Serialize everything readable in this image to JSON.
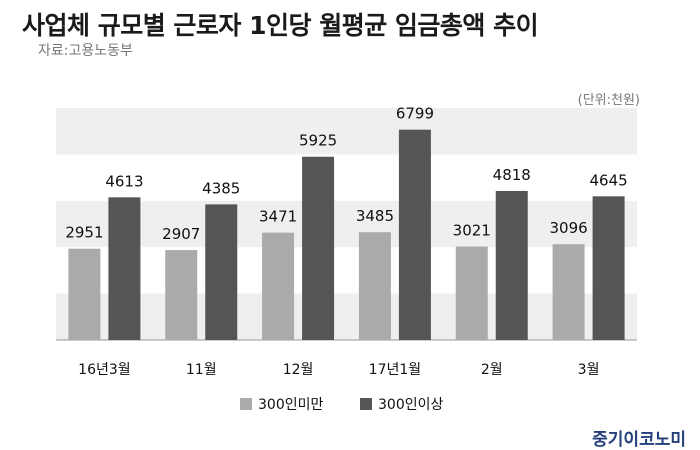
{
  "title": "사업체 규모별 근로자 1인당 월평균 임금총액 추이",
  "source": "자료:고용노동부",
  "unit": "(단위:천원)",
  "brand": "중기이코노미",
  "colors": {
    "series_small": "#aaaaaa",
    "series_large": "#555555",
    "band": "#efefef",
    "axis": "#999999"
  },
  "chart_data": {
    "type": "bar",
    "categories": [
      "16년3월",
      "11월",
      "12월",
      "17년1월",
      "2월",
      "3월"
    ],
    "series": [
      {
        "name": "300인미만",
        "values": [
          2951,
          2907,
          3471,
          3485,
          3021,
          3096
        ]
      },
      {
        "name": "300인이상",
        "values": [
          4613,
          4385,
          5925,
          6799,
          4818,
          4645
        ]
      }
    ],
    "xlabel": "",
    "ylabel": "",
    "ylim": [
      0,
      7500
    ],
    "grid": "alternating bands",
    "legend": "bottom-center"
  }
}
